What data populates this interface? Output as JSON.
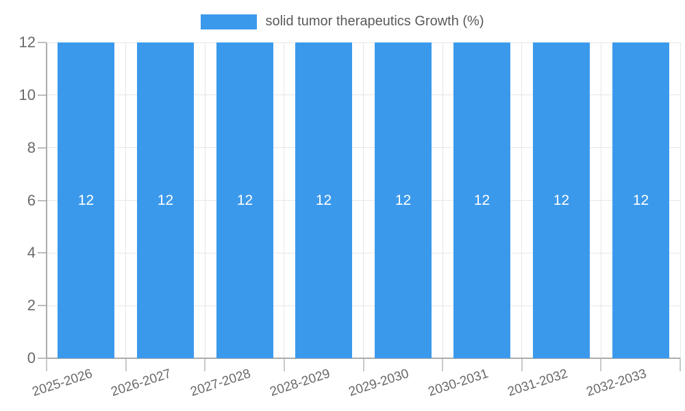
{
  "legend": {
    "label": "solid tumor therapeutics Growth (%)"
  },
  "chart_data": {
    "type": "bar",
    "title": "",
    "categories": [
      "2025-2026",
      "2026-2027",
      "2027-2028",
      "2028-2029",
      "2029-2030",
      "2030-2031",
      "2031-2032",
      "2032-2033"
    ],
    "series": [
      {
        "name": "solid tumor therapeutics Growth (%)",
        "values": [
          12,
          12,
          12,
          12,
          12,
          12,
          12,
          12
        ]
      }
    ],
    "bar_value_labels": [
      "12",
      "12",
      "12",
      "12",
      "12",
      "12",
      "12",
      "12"
    ],
    "xlabel": "",
    "ylabel": "",
    "ylim": [
      0,
      12
    ],
    "yticks": [
      0,
      2,
      4,
      6,
      8,
      10,
      12
    ],
    "grid": true,
    "legend_position": "top-center",
    "x_label_rotation_deg": -18,
    "colors": {
      "bar": "#3b99ec",
      "grid": "#e6e6e6",
      "axis_line": "#ababab",
      "tick_mark": "#c2c2c2",
      "axis_label_text": "#696969",
      "legend_text": "#595959",
      "bar_value_text": "#ffffff",
      "background": "#ffffff"
    }
  }
}
